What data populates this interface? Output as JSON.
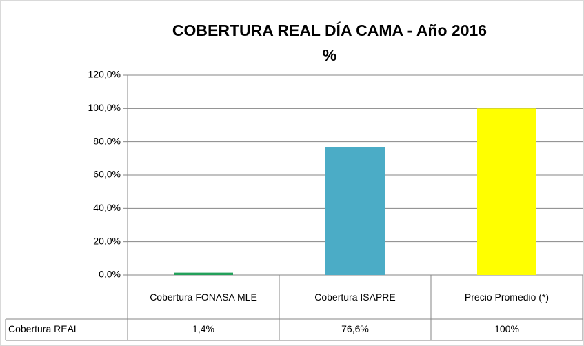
{
  "chart_data": {
    "type": "bar",
    "title": "COBERTURA REAL DÍA CAMA - Año 2016",
    "subtitle": "%",
    "categories": [
      "Cobertura FONASA MLE",
      "Cobertura ISAPRE",
      "Precio Promedio (*)"
    ],
    "series": [
      {
        "name": "Cobertura REAL",
        "colors": [
          "#23a05a",
          "#4bacc6",
          "#ffff00"
        ],
        "values": [
          1.4,
          76.6,
          100
        ],
        "value_labels": [
          "1,4%",
          "76,6%",
          "100%"
        ]
      }
    ],
    "ylim": [
      0,
      120
    ],
    "yticks": [
      {
        "value": 0,
        "label": "0,0%"
      },
      {
        "value": 20,
        "label": "20,0%"
      },
      {
        "value": 40,
        "label": "40,0%"
      },
      {
        "value": 60,
        "label": "60,0%"
      },
      {
        "value": 80,
        "label": "80,0%"
      },
      {
        "value": 100,
        "label": "100,0%"
      },
      {
        "value": 120,
        "label": "120,0%"
      }
    ],
    "grid": true
  }
}
